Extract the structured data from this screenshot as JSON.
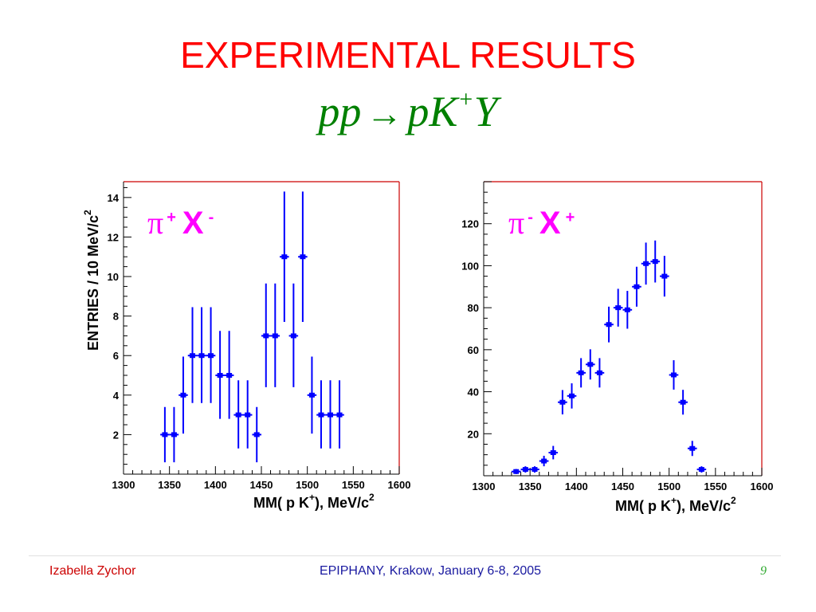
{
  "slide": {
    "title": "EXPERIMENTAL RESULTS",
    "formula": {
      "left": "pp",
      "arrow": "→",
      "p": "pK",
      "sup": "+",
      "y": "Y"
    }
  },
  "footer": {
    "author": "Izabella Zychor",
    "event": "EPIPHANY, Krakow, January 6-8, 2005",
    "page": "9"
  },
  "colors": {
    "title": "#ff0000",
    "formula": "#008000",
    "points": "#0000ff",
    "frame": "#cc0000",
    "label": "#ff00ff"
  },
  "chart_data": [
    {
      "type": "scatter",
      "label": {
        "pi": "π",
        "pi_sign": "+",
        "x": "X",
        "x_sign": "-"
      },
      "xlabel": {
        "pre": "MM( p K",
        "sup": "+",
        "post": "), MeV/c",
        "sup2": "2"
      },
      "ylabel": {
        "text": "ENTRIES / 10 MeV/c",
        "sup": "2"
      },
      "xlim": [
        1300,
        1600
      ],
      "ylim": [
        0,
        14.8
      ],
      "xticks": [
        1300,
        1350,
        1400,
        1450,
        1500,
        1550,
        1600
      ],
      "yticks": [
        2,
        4,
        6,
        8,
        10,
        12,
        14
      ],
      "x": [
        1345,
        1355,
        1365,
        1375,
        1385,
        1395,
        1405,
        1415,
        1425,
        1435,
        1445,
        1455,
        1465,
        1475,
        1485,
        1495,
        1505,
        1515,
        1525,
        1535
      ],
      "y": [
        2,
        2,
        4,
        6,
        6,
        6,
        5,
        5,
        3,
        3,
        2,
        7,
        7,
        11,
        7,
        11,
        4,
        3,
        3,
        3
      ],
      "yerr_low": [
        1.4,
        1.4,
        1.95,
        2.4,
        2.4,
        2.4,
        2.2,
        2.2,
        1.7,
        1.7,
        1.4,
        2.6,
        2.6,
        3.3,
        2.6,
        3.3,
        1.95,
        1.7,
        1.7,
        1.7
      ],
      "yerr_high": [
        1.4,
        1.4,
        1.95,
        2.45,
        2.45,
        2.45,
        2.25,
        2.25,
        1.75,
        1.75,
        1.4,
        2.65,
        2.65,
        3.3,
        2.65,
        3.3,
        1.95,
        1.75,
        1.75,
        1.75
      ]
    },
    {
      "type": "scatter",
      "label": {
        "pi": "π",
        "pi_sign": "-",
        "x": "X",
        "x_sign": "+"
      },
      "xlabel": {
        "pre": "MM( p K",
        "sup": "+",
        "post": "), MeV/c",
        "sup2": "2"
      },
      "ylabel": {
        "text": "",
        "sup": ""
      },
      "xlim": [
        1300,
        1600
      ],
      "ylim": [
        0,
        140
      ],
      "xticks": [
        1300,
        1350,
        1400,
        1450,
        1500,
        1550,
        1600
      ],
      "yticks": [
        20,
        40,
        60,
        80,
        100,
        120
      ],
      "x": [
        1335,
        1345,
        1355,
        1365,
        1375,
        1385,
        1395,
        1405,
        1415,
        1425,
        1435,
        1445,
        1455,
        1465,
        1475,
        1485,
        1495,
        1505,
        1515,
        1525,
        1535
      ],
      "y": [
        2,
        3,
        3,
        7,
        11,
        35,
        38,
        49,
        53,
        49,
        72,
        80,
        79,
        90,
        101,
        102,
        95,
        48,
        35,
        13,
        3
      ],
      "yerr_low": [
        1.2,
        1.5,
        1.5,
        2.5,
        3.2,
        5.8,
        6,
        7,
        7.2,
        7,
        8.5,
        9,
        9,
        9.5,
        10,
        10,
        9.7,
        7,
        5.9,
        3.6,
        1.5
      ],
      "yerr_high": [
        1.2,
        1.5,
        1.5,
        2.5,
        3.2,
        5.8,
        6,
        7,
        7.2,
        7,
        8.5,
        9,
        9,
        9.5,
        10,
        10,
        9.7,
        7,
        5.9,
        3.6,
        1.5
      ]
    }
  ]
}
